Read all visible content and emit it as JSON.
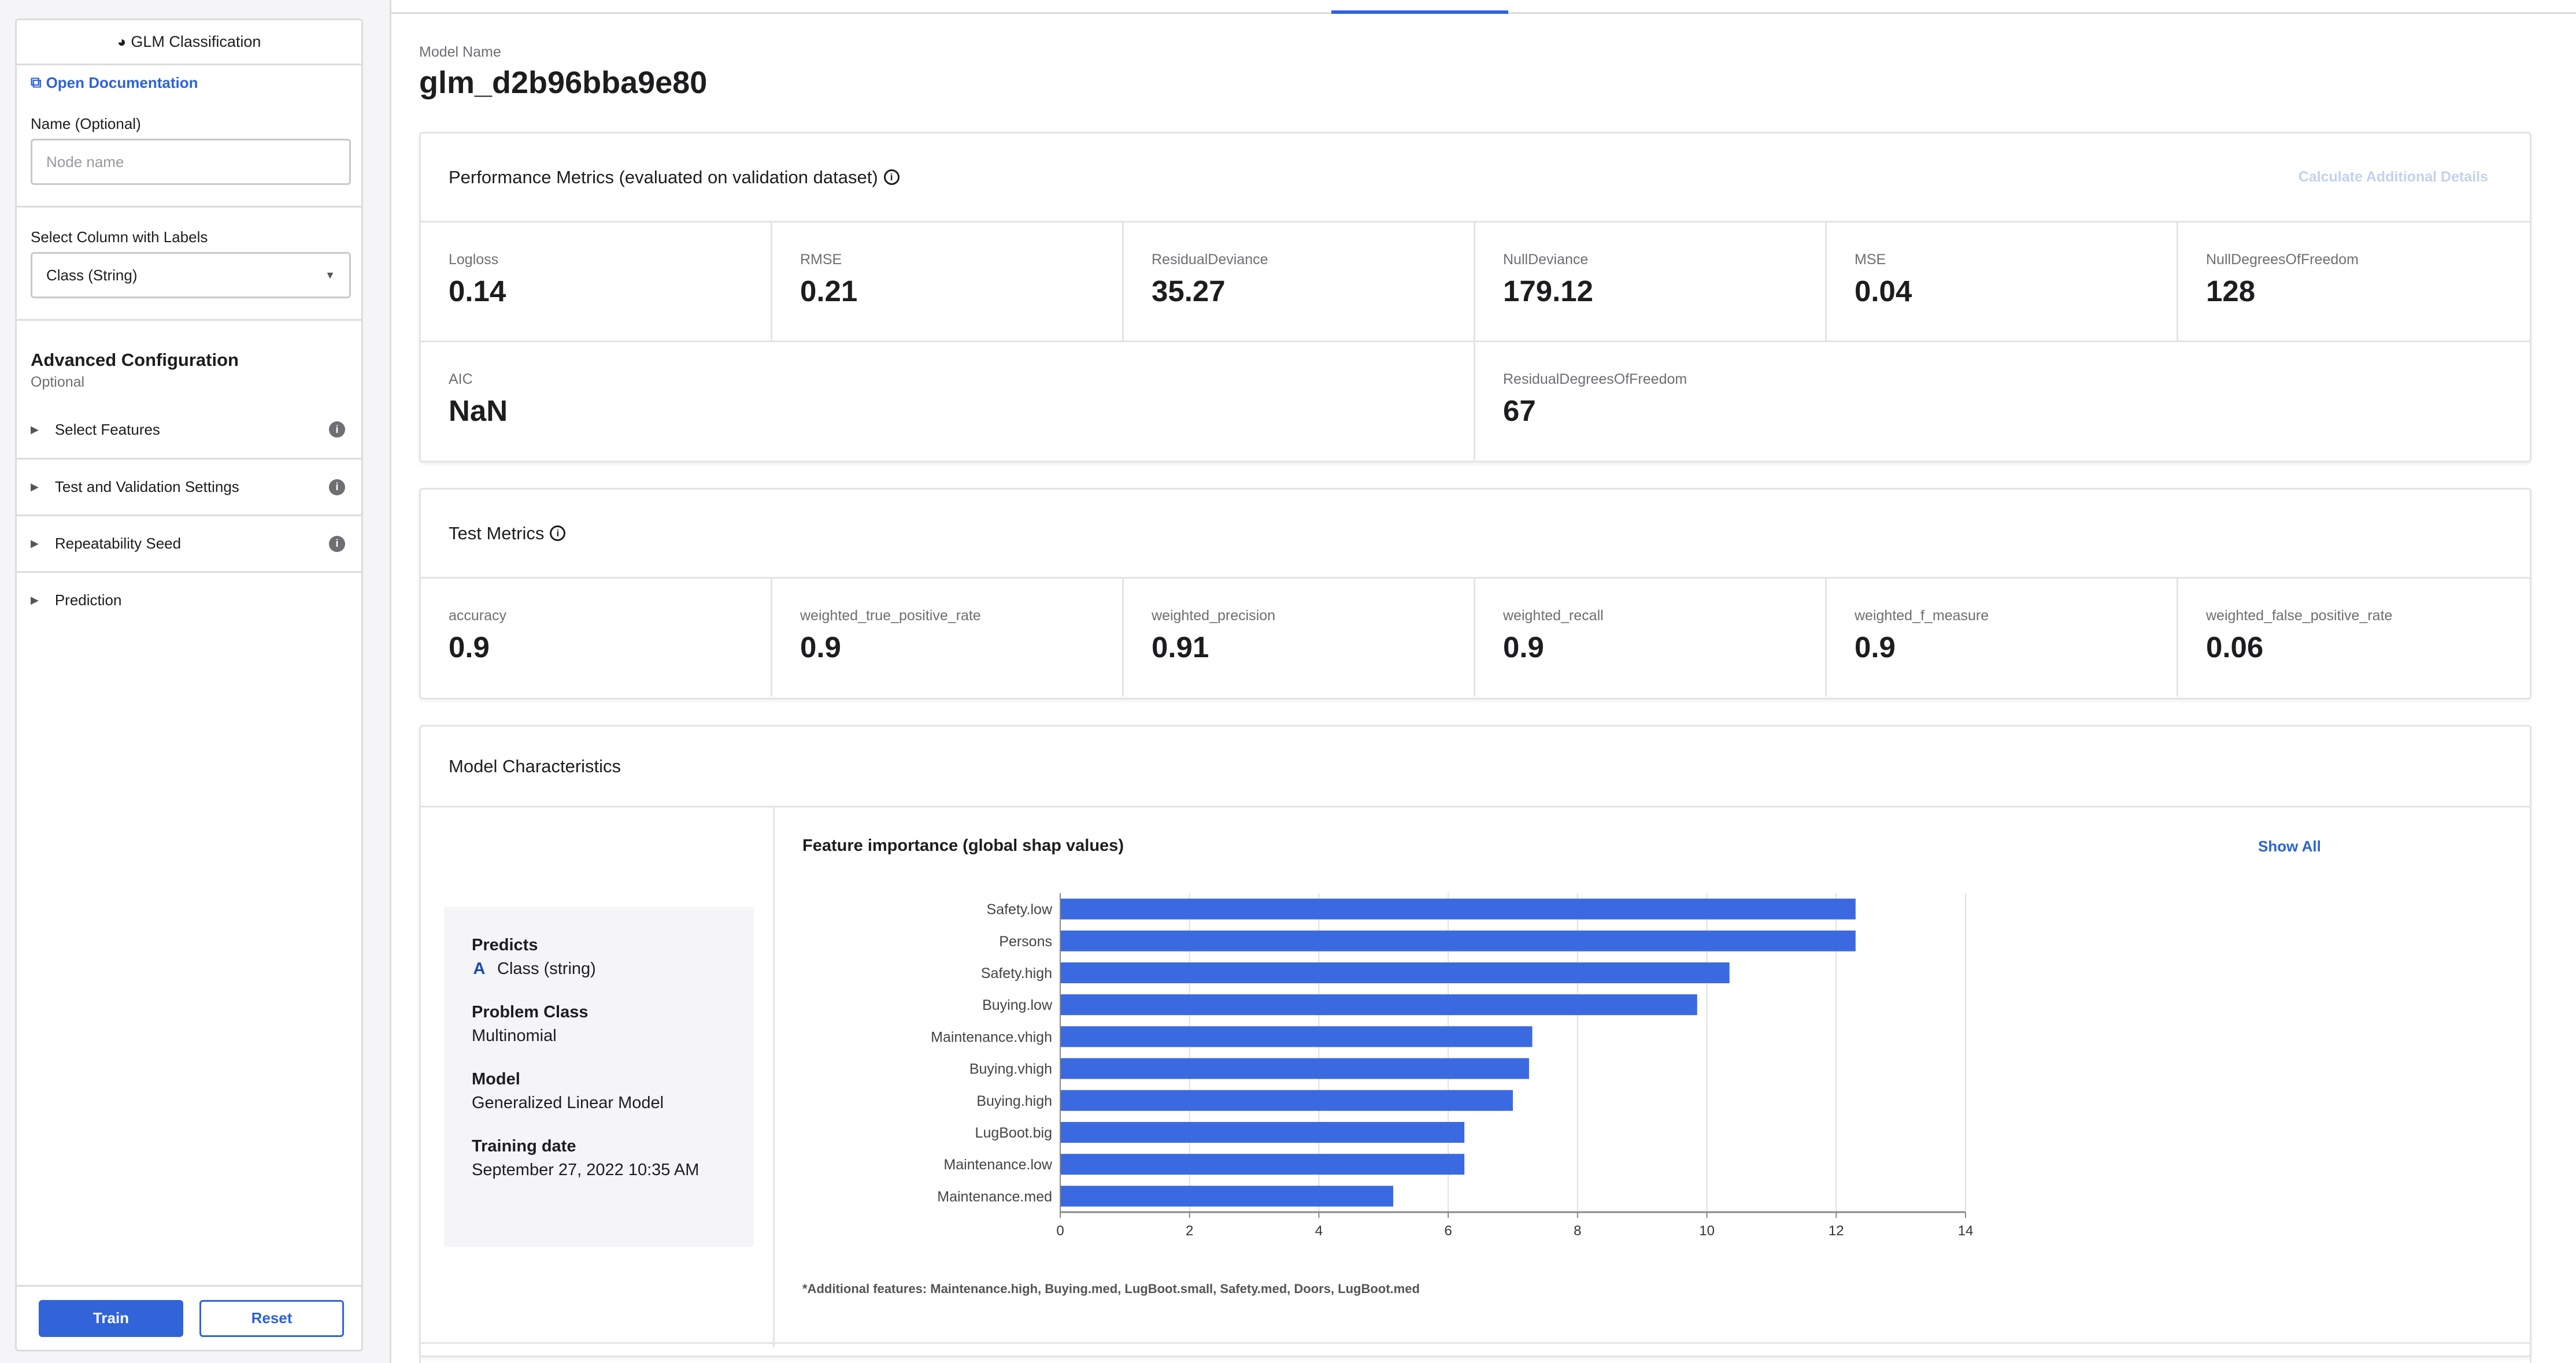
{
  "sidebar": {
    "header_title": "GLM Classification",
    "doc_link": "Open Documentation",
    "name_label": "Name (Optional)",
    "name_placeholder": "Node name",
    "label_column_label": "Select Column with Labels",
    "label_column_value": "Class (String)",
    "advanced_title": "Advanced Configuration",
    "advanced_subtitle": "Optional",
    "accordion": [
      {
        "label": "Select Features",
        "has_info": true
      },
      {
        "label": "Test and Validation Settings",
        "has_info": true
      },
      {
        "label": "Repeatability Seed",
        "has_info": true
      },
      {
        "label": "Prediction",
        "has_info": false
      }
    ],
    "train_label": "Train",
    "reset_label": "Reset"
  },
  "main": {
    "model_name_label": "Model Name",
    "model_name": "glm_d2b96bba9e80",
    "performance": {
      "title": "Performance Metrics (evaluated on validation dataset)",
      "calc_link": "Calculate Additional Details",
      "row1": [
        {
          "label": "Logloss",
          "value": "0.14"
        },
        {
          "label": "RMSE",
          "value": "0.21"
        },
        {
          "label": "ResidualDeviance",
          "value": "35.27"
        },
        {
          "label": "NullDeviance",
          "value": "179.12"
        },
        {
          "label": "MSE",
          "value": "0.04"
        },
        {
          "label": "NullDegreesOfFreedom",
          "value": "128"
        }
      ],
      "row2": [
        {
          "label": "AIC",
          "value": "NaN"
        },
        {
          "label": "ResidualDegreesOfFreedom",
          "value": "67"
        }
      ]
    },
    "test": {
      "title": "Test Metrics",
      "metrics": [
        {
          "label": "accuracy",
          "value": "0.9"
        },
        {
          "label": "weighted_true_positive_rate",
          "value": "0.9"
        },
        {
          "label": "weighted_precision",
          "value": "0.91"
        },
        {
          "label": "weighted_recall",
          "value": "0.9"
        },
        {
          "label": "weighted_f_measure",
          "value": "0.9"
        },
        {
          "label": "weighted_false_positive_rate",
          "value": "0.06"
        }
      ]
    },
    "characteristics": {
      "title": "Model Characteristics",
      "predicts_title": "Predicts",
      "predicts_badge": "A",
      "predicts_value": "Class (string)",
      "problem_title": "Problem Class",
      "problem_value": "Multinomial",
      "model_title": "Model",
      "model_value": "Generalized Linear Model",
      "date_title": "Training date",
      "date_value": "September 27, 2022 10:35 AM",
      "feature_title": "Feature importance (global shap values)",
      "show_all": "Show All",
      "footnote": "*Additional features: Maintenance.high, Buying.med, LugBoot.small, Safety.med, Doors, LugBoot.med"
    }
  },
  "colors": {
    "accent": "#3164d8",
    "bar": "#3b6ae0"
  },
  "chart_data": {
    "type": "bar",
    "orientation": "horizontal",
    "title": "Feature importance (global shap values)",
    "categories": [
      "Safety.low",
      "Persons",
      "Safety.high",
      "Buying.low",
      "Maintenance.vhigh",
      "Buying.vhigh",
      "Buying.high",
      "LugBoot.big",
      "Maintenance.low",
      "Maintenance.med"
    ],
    "values": [
      12.3,
      12.3,
      10.35,
      9.85,
      7.3,
      7.25,
      7.0,
      6.25,
      6.25,
      5.15
    ],
    "xlim": [
      0,
      14
    ],
    "xticks": [
      "0",
      "2",
      "4",
      "6",
      "8",
      "10",
      "12",
      "14"
    ],
    "grid": true
  }
}
